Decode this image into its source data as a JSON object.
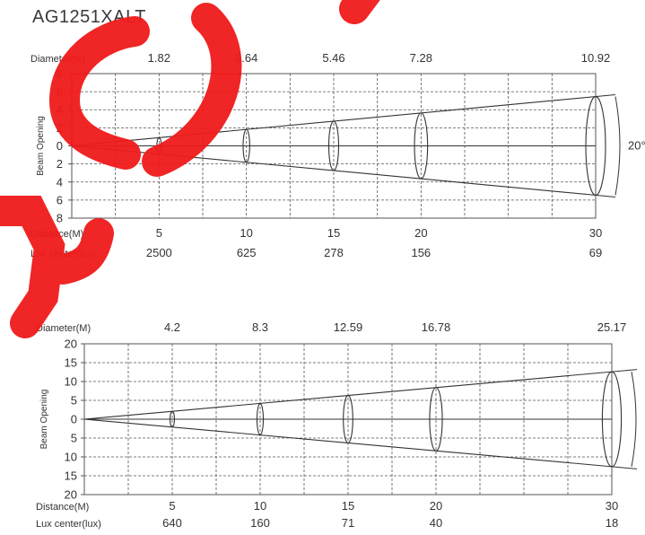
{
  "page": {
    "title": "AG1251XALT"
  },
  "watermark": {
    "color": "#f01a1a",
    "text": "Sample"
  },
  "chart_data": [
    {
      "type": "beam-diagram",
      "angle_label": "20°",
      "ylabel": "Beam Opening",
      "ytick_labels": [
        "8",
        "6",
        "4",
        "2",
        "0",
        "2",
        "4",
        "6",
        "8"
      ],
      "ylim": [
        -8,
        8
      ],
      "xlim": [
        0,
        30
      ],
      "diameter_label": "Diameter(M)",
      "distance_label": "Distance(M)",
      "lux_label": "Lux center(lux)",
      "distances": [
        5,
        10,
        15,
        20,
        30
      ],
      "diameters": [
        "1.82",
        "3.64",
        "5.46",
        "7.28",
        "10.92"
      ],
      "lux": [
        "2500",
        "625",
        "278",
        "156",
        "69"
      ]
    },
    {
      "type": "beam-diagram",
      "angle_label": "",
      "ylabel": "Beam Opening",
      "ytick_labels": [
        "20",
        "15",
        "10",
        "5",
        "0",
        "5",
        "10",
        "15",
        "20"
      ],
      "ylim": [
        -20,
        20
      ],
      "xlim": [
        0,
        30
      ],
      "diameter_label": "Diameter(M)",
      "distance_label": "Distance(M)",
      "lux_label": "Lux center(lux)",
      "distances": [
        5,
        10,
        15,
        20,
        30
      ],
      "diameters": [
        "4.2",
        "8.3",
        "12.59",
        "16.78",
        "25.17"
      ],
      "lux": [
        "640",
        "160",
        "71",
        "40",
        "18"
      ]
    }
  ]
}
